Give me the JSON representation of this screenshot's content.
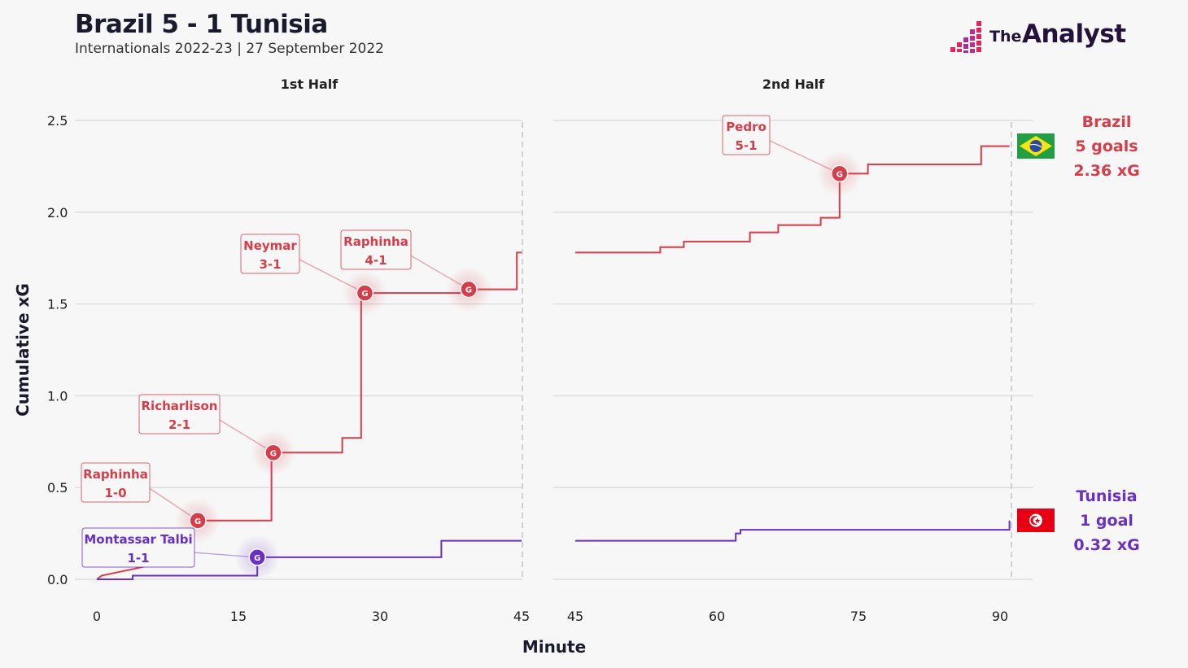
{
  "header": {
    "title": "Brazil 5 - 1 Tunisia",
    "subtitle": "Internationals 2022-23 | 27 September 2022",
    "logo_prefix": "The",
    "logo_name": "Analyst"
  },
  "chart_data": {
    "type": "line",
    "step": true,
    "xlabel": "Minute",
    "ylabel": "Cumulative xG",
    "ylim": [
      0,
      2.5
    ],
    "yticks": [
      "0.0",
      "0.5",
      "1.0",
      "1.5",
      "2.0",
      "2.5"
    ],
    "grid": true,
    "panels": [
      {
        "label": "1st Half",
        "xlim": [
          0,
          45
        ],
        "xticks": [
          "0",
          "15",
          "30",
          "45"
        ]
      },
      {
        "label": "2nd Half",
        "xlim": [
          45,
          90
        ],
        "xticks": [
          "45",
          "60",
          "75",
          "90"
        ]
      }
    ],
    "series": [
      {
        "name": "Brazil",
        "color": "#d63d48",
        "summary_goals": "5 goals",
        "summary_xg": "2.36 xG",
        "flag": "brazil-flag",
        "first_half": [
          [
            0,
            0
          ],
          [
            0.5,
            0.02
          ],
          [
            7,
            0.09
          ],
          [
            9,
            0.12
          ],
          [
            10.5,
            0.32
          ],
          [
            18.5,
            0.32
          ],
          [
            18.5,
            0.69
          ],
          [
            26,
            0.69
          ],
          [
            26,
            0.77
          ],
          [
            28,
            0.77
          ],
          [
            28,
            1.56
          ],
          [
            39,
            1.56
          ],
          [
            39,
            1.58
          ],
          [
            44.5,
            1.58
          ],
          [
            44.5,
            1.78
          ],
          [
            45,
            1.78
          ]
        ],
        "second_half": [
          [
            45,
            1.78
          ],
          [
            54,
            1.78
          ],
          [
            54,
            1.81
          ],
          [
            56.5,
            1.81
          ],
          [
            56.5,
            1.84
          ],
          [
            63.5,
            1.84
          ],
          [
            63.5,
            1.89
          ],
          [
            66.5,
            1.89
          ],
          [
            66.5,
            1.93
          ],
          [
            71,
            1.93
          ],
          [
            71,
            1.97
          ],
          [
            73,
            1.97
          ],
          [
            73,
            2.21
          ],
          [
            76,
            2.21
          ],
          [
            76,
            2.26
          ],
          [
            88,
            2.26
          ],
          [
            88,
            2.36
          ],
          [
            91,
            2.36
          ]
        ]
      },
      {
        "name": "Tunisia",
        "color": "#6a2fc4",
        "summary_goals": "1 goal",
        "summary_xg": "0.32 xG",
        "flag": "tunisia-flag",
        "first_half": [
          [
            0,
            0
          ],
          [
            3.8,
            0
          ],
          [
            3.8,
            0.02
          ],
          [
            17,
            0.02
          ],
          [
            17,
            0.12
          ],
          [
            36.5,
            0.12
          ],
          [
            36.5,
            0.21
          ],
          [
            45,
            0.21
          ]
        ],
        "second_half": [
          [
            45,
            0.21
          ],
          [
            62,
            0.21
          ],
          [
            62,
            0.25
          ],
          [
            62.5,
            0.25
          ],
          [
            62.5,
            0.27
          ],
          [
            91,
            0.27
          ],
          [
            91,
            0.32
          ]
        ]
      }
    ],
    "goals": [
      {
        "team": "Brazil",
        "half": 1,
        "minute": 10.7,
        "xg": 0.32,
        "player": "Raphinha",
        "score": "1-0",
        "marker": "G"
      },
      {
        "team": "Tunisia",
        "half": 1,
        "minute": 17,
        "xg": 0.12,
        "player": "Montassar Talbi",
        "score": "1-1",
        "marker": "G"
      },
      {
        "team": "Brazil",
        "half": 1,
        "minute": 18.7,
        "xg": 0.69,
        "player": "Richarlison",
        "score": "2-1",
        "marker": "G"
      },
      {
        "team": "Brazil",
        "half": 1,
        "minute": 28.4,
        "xg": 1.56,
        "player": "Neymar",
        "score": "3-1",
        "marker": "G"
      },
      {
        "team": "Brazil",
        "half": 1,
        "minute": 39.4,
        "xg": 1.58,
        "player": "Raphinha",
        "score": "4-1",
        "marker": "G"
      },
      {
        "team": "Brazil",
        "half": 2,
        "minute": 73,
        "xg": 2.21,
        "player": "Pedro",
        "score": "5-1",
        "marker": "G"
      }
    ]
  }
}
